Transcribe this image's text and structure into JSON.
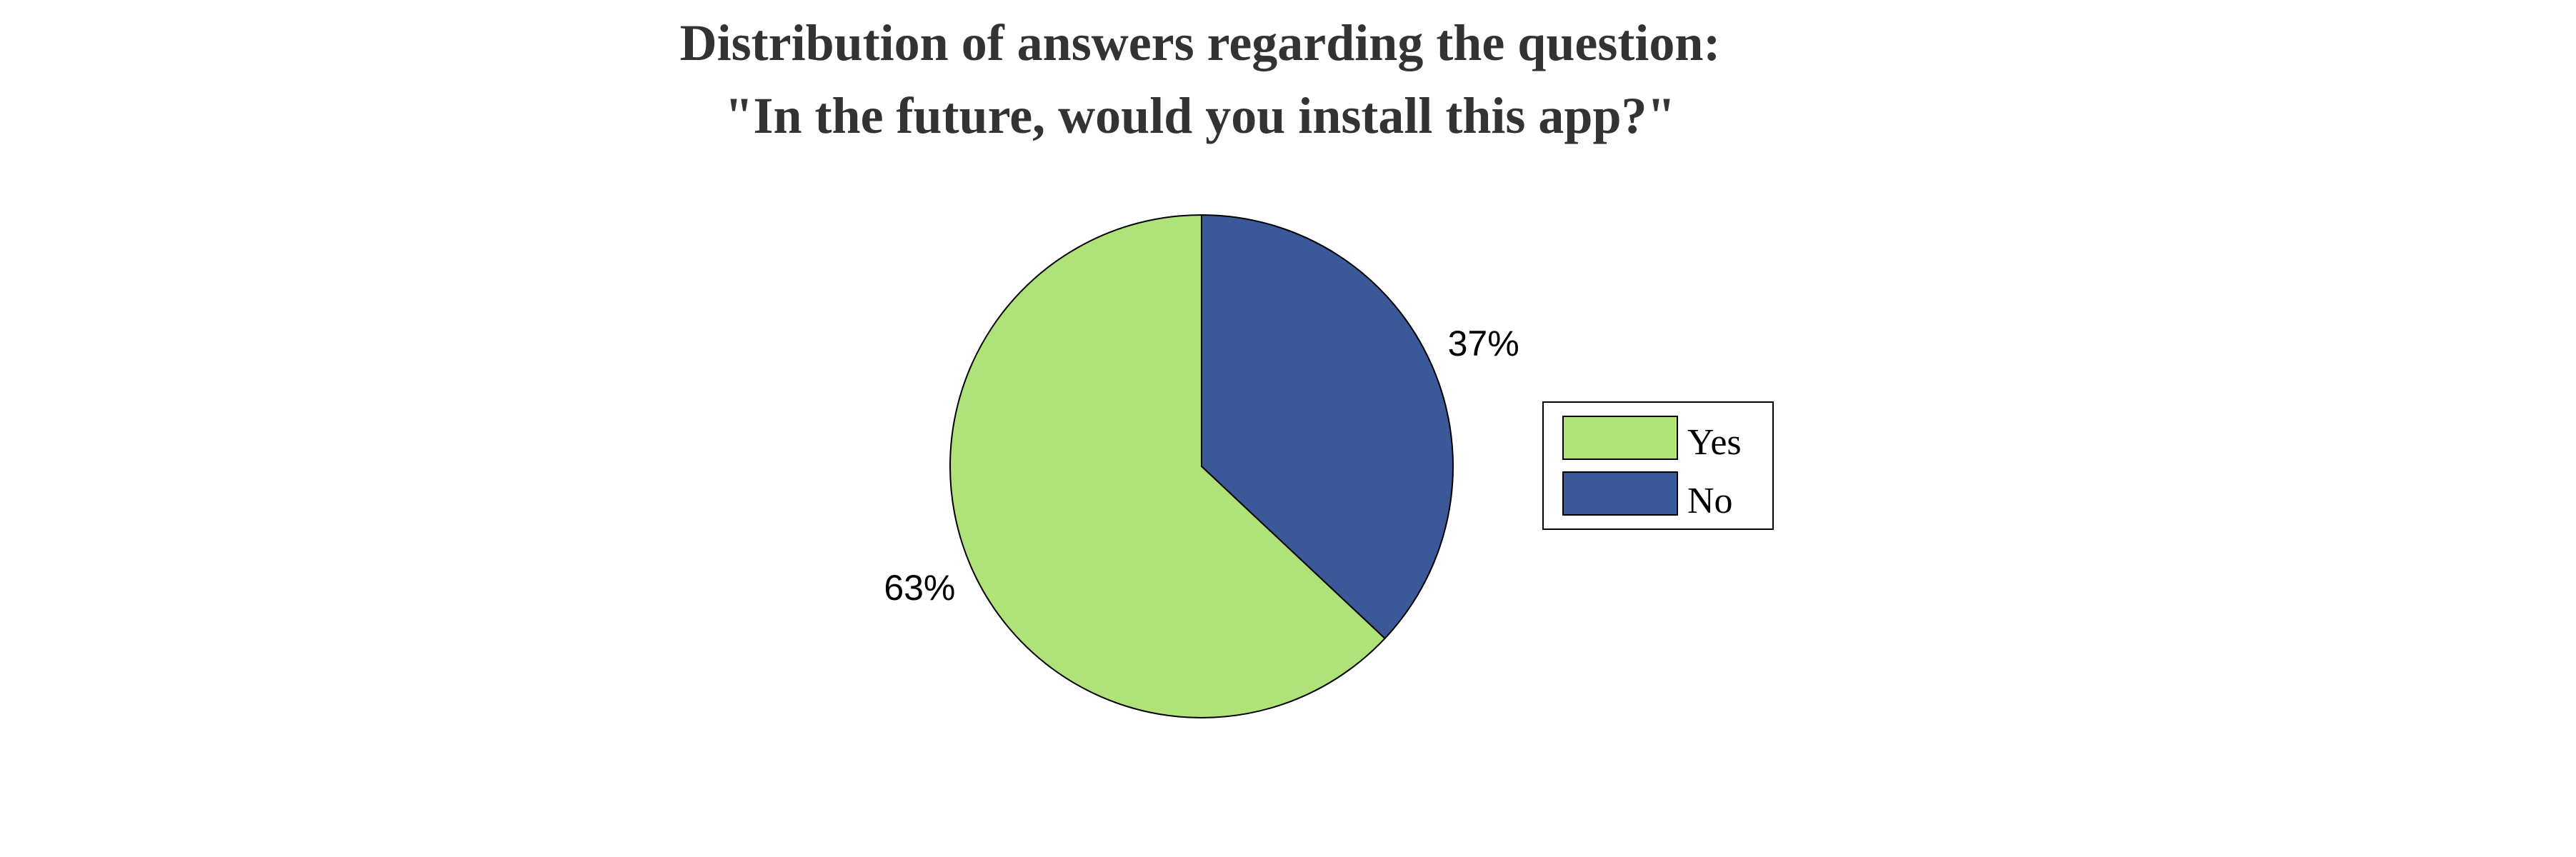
{
  "chart_data": {
    "type": "pie",
    "title": {
      "line1": "Distribution of answers regarding the question:",
      "line2": "\"In the future, would you install this app?\""
    },
    "slices": [
      {
        "name": "Yes",
        "value": 63,
        "label": "63%",
        "color": "#b0e27a"
      },
      {
        "name": "No",
        "value": 37,
        "label": "37%",
        "color": "#3b5998"
      }
    ],
    "legend": {
      "placement": "right",
      "entries": [
        "Yes",
        "No"
      ]
    },
    "start_angle": "12 o'clock",
    "direction": "counterclockwise",
    "grid": false
  }
}
